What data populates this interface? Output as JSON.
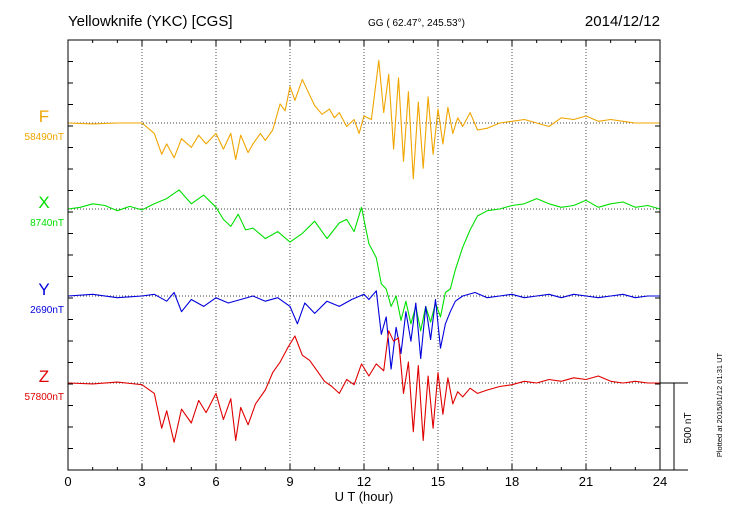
{
  "header": {
    "station": "Yellowknife (YKC)  [CGS]",
    "coords": "GG ( 62.47°, 245.53°)",
    "date": "2014/12/12"
  },
  "plotted_note": "Plotted at 2015/01/12 01:31  UT",
  "scale_label": "500 nT",
  "chart_data": {
    "type": "line",
    "xlabel": "U T (hour)",
    "xlim": [
      0,
      24
    ],
    "xticks": [
      0,
      3,
      6,
      9,
      12,
      15,
      18,
      21,
      24
    ],
    "scale_nT": 500,
    "grid": true,
    "series": [
      {
        "name": "F",
        "baseline_label": "58490nT",
        "color": "#f0a500",
        "x": [
          0,
          1,
          2,
          3,
          3.5,
          3.8,
          4,
          4.3,
          4.6,
          5,
          5.3,
          5.6,
          6,
          6.3,
          6.6,
          6.8,
          7,
          7.3,
          7.5,
          7.8,
          8,
          8.3,
          8.6,
          8.8,
          9,
          9.2,
          9.5,
          9.8,
          10,
          10.3,
          10.6,
          10.8,
          11,
          11.3,
          11.6,
          11.8,
          12,
          12.3,
          12.6,
          12.8,
          13,
          13.2,
          13.4,
          13.6,
          13.8,
          14,
          14.2,
          14.4,
          14.6,
          14.8,
          15,
          15.2,
          15.4,
          15.6,
          15.8,
          16,
          16.3,
          16.6,
          17,
          17.5,
          18,
          18.5,
          19,
          19.5,
          20,
          20.5,
          21,
          21.5,
          22,
          22.5,
          23,
          23.5,
          24
        ],
        "y": [
          0,
          -5,
          0,
          0,
          -60,
          -180,
          -120,
          -200,
          -90,
          -140,
          -70,
          -120,
          -60,
          -150,
          -60,
          -210,
          -70,
          -170,
          -120,
          -60,
          -100,
          -40,
          110,
          70,
          210,
          130,
          250,
          160,
          100,
          50,
          80,
          30,
          60,
          -20,
          20,
          -60,
          40,
          20,
          360,
          60,
          280,
          -150,
          260,
          -220,
          180,
          -320,
          120,
          -260,
          150,
          -180,
          80,
          -120,
          90,
          -60,
          30,
          -20,
          60,
          -40,
          -30,
          0,
          10,
          20,
          0,
          -20,
          30,
          20,
          40,
          10,
          20,
          10,
          0,
          0,
          0
        ]
      },
      {
        "name": "X",
        "baseline_label": "8740nT",
        "color": "#00e000",
        "x": [
          0,
          0.5,
          1,
          1.5,
          2,
          2.5,
          3,
          3.5,
          4,
          4.5,
          5,
          5.5,
          6,
          6.3,
          6.6,
          6.9,
          7.2,
          7.5,
          8,
          8.5,
          9,
          9.5,
          10,
          10.5,
          11,
          11.3,
          11.6,
          11.9,
          12.2,
          12.5,
          12.7,
          12.9,
          13.1,
          13.3,
          13.5,
          13.7,
          13.9,
          14.1,
          14.3,
          14.5,
          14.7,
          14.9,
          15.1,
          15.3,
          15.5,
          15.7,
          16,
          16.3,
          16.6,
          17,
          17.5,
          18,
          18.5,
          19,
          19.5,
          20,
          20.5,
          21,
          21.5,
          22,
          22.5,
          23,
          23.5,
          24
        ],
        "y": [
          0,
          10,
          30,
          20,
          -10,
          15,
          -5,
          30,
          60,
          110,
          30,
          80,
          10,
          -60,
          -100,
          -30,
          -120,
          -110,
          -170,
          -130,
          -190,
          -140,
          -70,
          -170,
          -80,
          -60,
          -130,
          10,
          -200,
          -280,
          -430,
          -460,
          -560,
          -500,
          -640,
          -530,
          -660,
          -560,
          -700,
          -560,
          -650,
          -540,
          -620,
          -480,
          -460,
          -350,
          -220,
          -120,
          -40,
          -10,
          0,
          20,
          30,
          60,
          30,
          10,
          20,
          50,
          10,
          30,
          40,
          10,
          20,
          0
        ]
      },
      {
        "name": "Y",
        "baseline_label": "2690nT",
        "color": "#0000dd",
        "x": [
          0,
          1,
          2,
          3,
          3.5,
          4,
          4.3,
          4.6,
          5,
          5.5,
          6,
          6.5,
          7,
          7.5,
          8,
          8.5,
          9,
          9.3,
          9.6,
          10,
          10.5,
          11,
          11.5,
          12,
          12.2,
          12.5,
          12.7,
          12.9,
          13.1,
          13.3,
          13.5,
          13.7,
          13.9,
          14.1,
          14.3,
          14.5,
          14.7,
          14.9,
          15.1,
          15.3,
          15.5,
          15.7,
          16,
          16.5,
          17,
          17.5,
          18,
          18.5,
          19,
          19.5,
          20,
          20.5,
          21,
          21.5,
          22,
          22.5,
          23,
          23.5,
          24
        ],
        "y": [
          0,
          10,
          -10,
          0,
          10,
          -30,
          20,
          -90,
          -20,
          -60,
          -10,
          -40,
          -20,
          0,
          -30,
          -10,
          -60,
          -160,
          -40,
          -100,
          -30,
          -60,
          -20,
          10,
          -20,
          30,
          -220,
          -120,
          -420,
          -180,
          -330,
          -90,
          -260,
          -40,
          -360,
          -60,
          -250,
          -20,
          -300,
          -160,
          -90,
          -30,
          0,
          20,
          -10,
          0,
          10,
          -10,
          0,
          10,
          -10,
          10,
          0,
          -10,
          0,
          10,
          -10,
          0,
          0
        ]
      },
      {
        "name": "Z",
        "baseline_label": "57800nT",
        "color": "#e00000",
        "x": [
          0,
          1,
          2,
          3,
          3.5,
          3.8,
          4,
          4.3,
          4.6,
          5,
          5.3,
          5.6,
          6,
          6.3,
          6.6,
          6.8,
          7,
          7.3,
          7.6,
          8,
          8.3,
          8.6,
          8.9,
          9.2,
          9.5,
          9.8,
          10.1,
          10.4,
          10.7,
          11,
          11.3,
          11.6,
          11.9,
          12.2,
          12.5,
          12.8,
          13,
          13.2,
          13.4,
          13.6,
          13.8,
          14,
          14.2,
          14.4,
          14.6,
          14.8,
          15,
          15.2,
          15.4,
          15.6,
          15.8,
          16,
          16.3,
          16.6,
          17,
          17.5,
          18,
          18.5,
          19,
          19.5,
          20,
          20.5,
          21,
          21.5,
          22,
          22.5,
          23,
          23.5,
          24
        ],
        "y": [
          0,
          -5,
          5,
          -10,
          -60,
          -260,
          -160,
          -340,
          -150,
          -230,
          -100,
          -170,
          -60,
          -210,
          -90,
          -330,
          -140,
          -240,
          -120,
          -40,
          60,
          120,
          200,
          270,
          160,
          130,
          70,
          10,
          -20,
          -60,
          20,
          -10,
          110,
          40,
          110,
          70,
          300,
          240,
          260,
          -60,
          120,
          -280,
          100,
          -330,
          40,
          -260,
          60,
          -180,
          30,
          -120,
          -50,
          -80,
          -30,
          -60,
          -40,
          -20,
          -10,
          10,
          0,
          20,
          10,
          30,
          20,
          40,
          10,
          0,
          10,
          0,
          0
        ]
      }
    ]
  }
}
